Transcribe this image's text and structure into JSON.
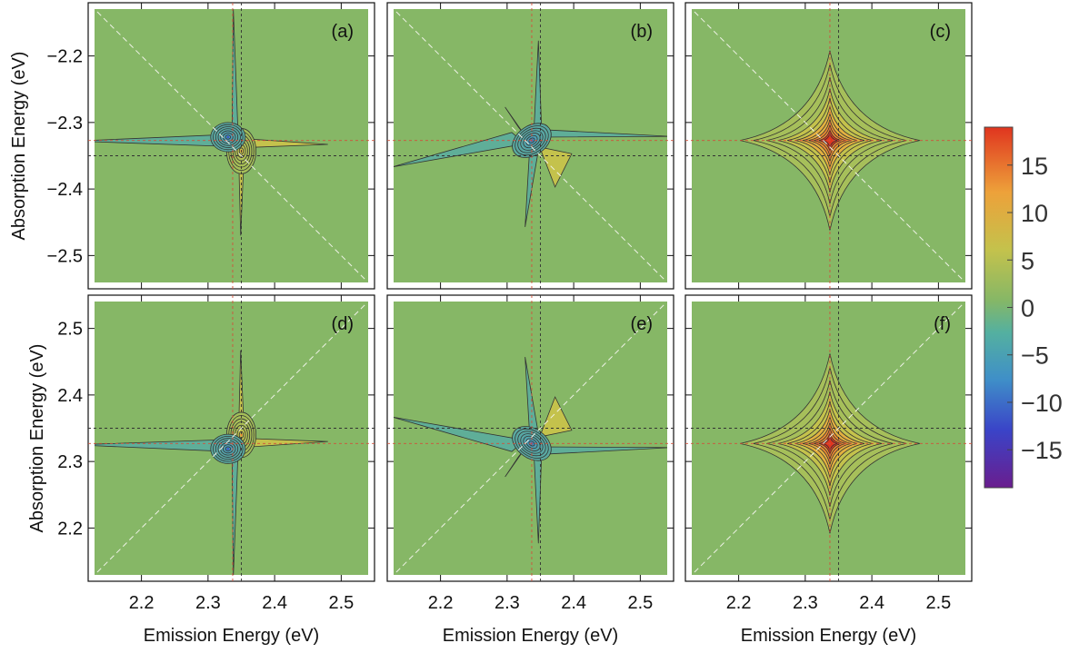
{
  "chart_data": {
    "type": "contour",
    "colormap": "rainbow",
    "background_color": "#86b766",
    "colorbar": {
      "range": [
        -19,
        19
      ],
      "tick_values": [
        15,
        10,
        5,
        0,
        -5,
        -10,
        -15
      ],
      "tick_labels": [
        "15",
        "10",
        "5",
        "0",
        "−5",
        "−10",
        "−15"
      ],
      "colors": [
        "#6a1d8e",
        "#3a44c8",
        "#3f8fc8",
        "#54b0a0",
        "#86b766",
        "#c4c24c",
        "#eda13a",
        "#e0351f"
      ]
    },
    "xlabel": "Emission Energy (eV)",
    "ylabel": "Absorption Energy (eV)",
    "x_ticks": [
      "2.2",
      "2.3",
      "2.4",
      "2.5"
    ],
    "x_tick_values": [
      2.2,
      2.3,
      2.4,
      2.5
    ],
    "xlim": [
      2.12,
      2.55
    ],
    "reference_lines": {
      "emission_red": 2.337,
      "emission_black": 2.35,
      "absorption_red": 2.327,
      "absorption_black": 2.35
    },
    "rows": [
      {
        "ylim": [
          -2.55,
          -2.12
        ],
        "y_ticks": [
          "−2.2",
          "−2.3",
          "−2.4",
          "−2.5"
        ],
        "y_tick_values": [
          -2.2,
          -2.3,
          -2.4,
          -2.5
        ],
        "diagonal": "anti"
      },
      {
        "ylim": [
          2.12,
          2.55
        ],
        "y_ticks": [
          "2.5",
          "2.4",
          "2.3",
          "2.2"
        ],
        "y_tick_values": [
          2.5,
          2.4,
          2.3,
          2.2
        ],
        "diagonal": "main"
      }
    ],
    "panels": [
      {
        "label": "(a)",
        "row": 0,
        "col": 0,
        "kind": "dispersive",
        "peak_emission": 2.34,
        "peak_absorption": -2.33,
        "max": 13,
        "min": -16
      },
      {
        "label": "(b)",
        "row": 0,
        "col": 1,
        "kind": "derivative",
        "peak_emission": 2.337,
        "peak_absorption": -2.327,
        "max": 6,
        "min": -15
      },
      {
        "label": "(c)",
        "row": 0,
        "col": 2,
        "kind": "absorptive",
        "peak_emission": 2.337,
        "peak_absorption": -2.327,
        "max": 19,
        "min": 0
      },
      {
        "label": "(d)",
        "row": 1,
        "col": 0,
        "kind": "dispersive",
        "peak_emission": 2.34,
        "peak_absorption": 2.327,
        "max": 14,
        "min": -10
      },
      {
        "label": "(e)",
        "row": 1,
        "col": 1,
        "kind": "derivative",
        "peak_emission": 2.337,
        "peak_absorption": 2.327,
        "max": 6,
        "min": -13
      },
      {
        "label": "(f)",
        "row": 1,
        "col": 2,
        "kind": "absorptive",
        "peak_emission": 2.337,
        "peak_absorption": 2.327,
        "max": 17,
        "min": 0
      }
    ]
  }
}
